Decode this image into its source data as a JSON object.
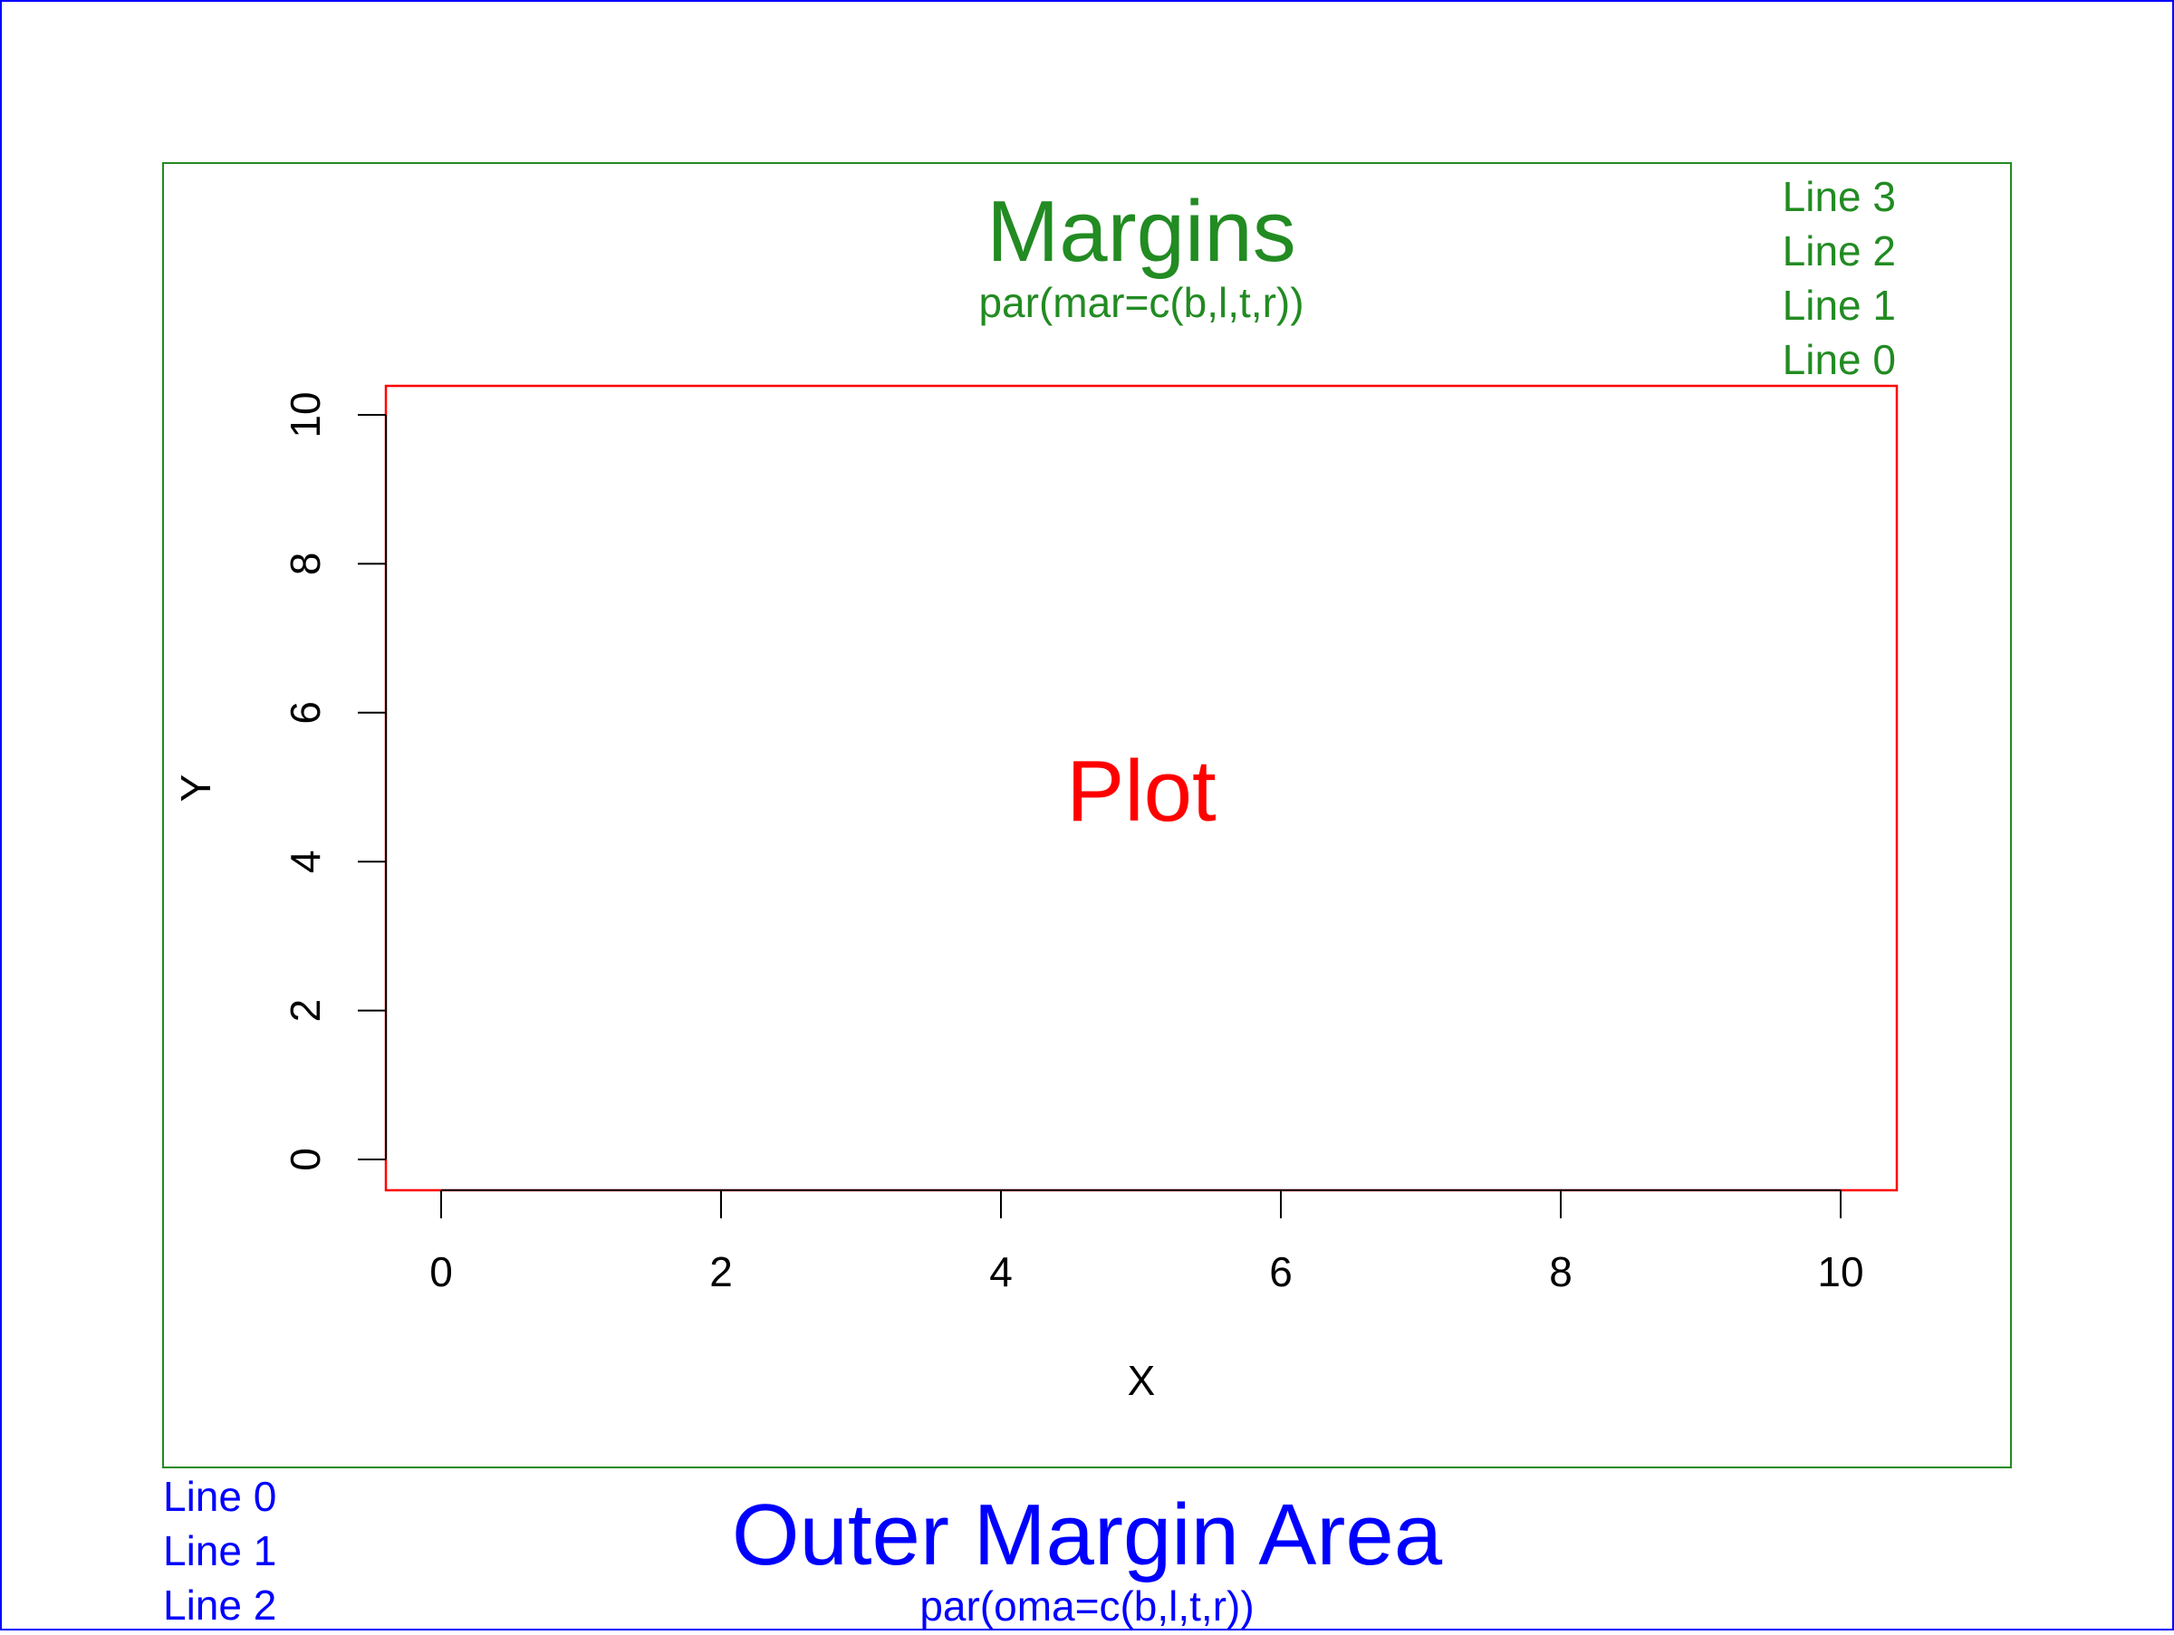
{
  "colors": {
    "outer": "#0000ff",
    "margin": "#228b22",
    "plot": "#ff0000",
    "axis": "#000000"
  },
  "margins": {
    "title": "Margins",
    "subtitle": "par(mar=c(b,l,t,r))",
    "lines": [
      "Line 3",
      "Line 2",
      "Line 1",
      "Line 0"
    ]
  },
  "outer_margin": {
    "title": "Outer Margin Area",
    "subtitle": "par(oma=c(b,l,t,r))",
    "lines": [
      "Line 0",
      "Line 1",
      "Line 2"
    ]
  },
  "plot": {
    "label": "Plot"
  },
  "chart_data": {
    "type": "scatter",
    "xlabel": "X",
    "ylabel": "Y",
    "xlim": [
      0,
      10
    ],
    "ylim": [
      0,
      10
    ],
    "x_ticks": [
      "0",
      "2",
      "4",
      "6",
      "8",
      "10"
    ],
    "y_ticks": [
      "0",
      "2",
      "4",
      "6",
      "8",
      "10"
    ],
    "grid": false,
    "points": []
  }
}
